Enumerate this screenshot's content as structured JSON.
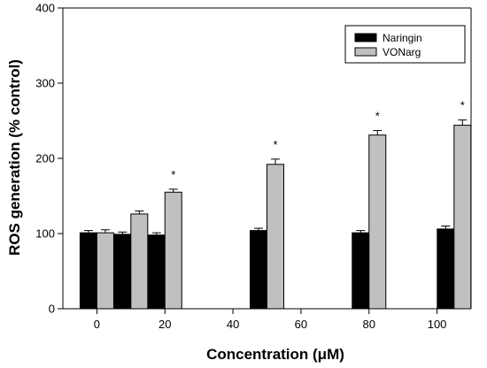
{
  "chart_data": {
    "type": "bar",
    "xlabel": "Concentration (μM)",
    "ylabel": "ROS generation (% control)",
    "xlim": [
      -10,
      110
    ],
    "ylim": [
      0,
      400
    ],
    "x_ticks": [
      0,
      20,
      40,
      60,
      80,
      100
    ],
    "y_ticks": [
      0,
      100,
      200,
      300,
      400
    ],
    "grid": false,
    "legend_position": "top-right",
    "series": [
      {
        "name": "Naringin",
        "color": "#000000",
        "x": [
          0,
          10,
          20,
          50,
          80,
          105
        ],
        "values": [
          101,
          99,
          98,
          104,
          101,
          106
        ],
        "errors": [
          3,
          3,
          3,
          3,
          3,
          4
        ]
      },
      {
        "name": "VONarg",
        "color": "#c0c0c0",
        "x": [
          0,
          10,
          20,
          50,
          80,
          105
        ],
        "values": [
          101,
          126,
          155,
          192,
          231,
          244
        ],
        "errors": [
          4,
          4,
          4,
          7,
          6,
          7
        ]
      }
    ],
    "annotations": [
      {
        "text": "*",
        "series": "VONarg",
        "index": 2
      },
      {
        "text": "*",
        "series": "VONarg",
        "index": 3
      },
      {
        "text": "*",
        "series": "VONarg",
        "index": 4
      },
      {
        "text": "*",
        "series": "VONarg",
        "index": 5
      }
    ]
  }
}
